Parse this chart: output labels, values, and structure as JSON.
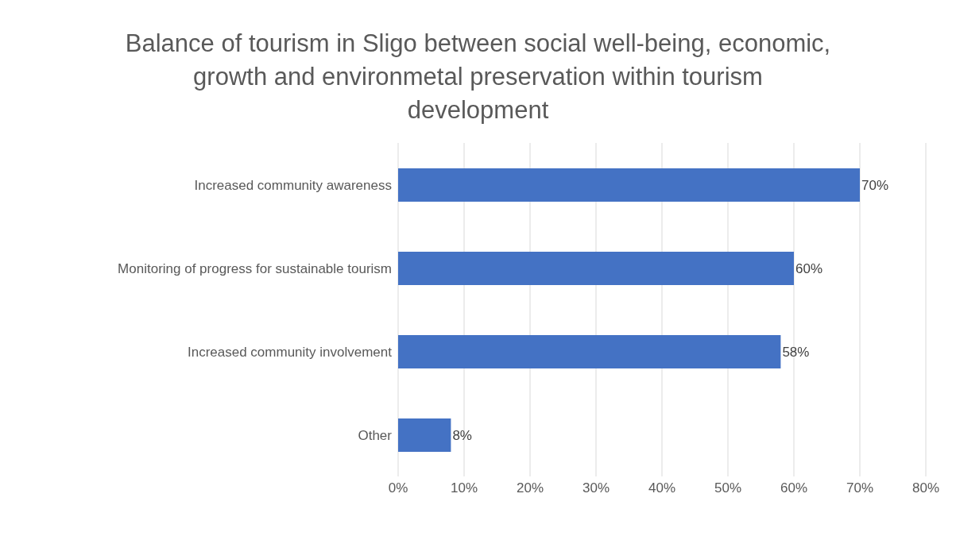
{
  "chart_data": {
    "type": "bar",
    "orientation": "horizontal",
    "title": "Balance of tourism in Sligo between social well-being, economic, growth and environmetal preservation within tourism development",
    "categories": [
      "Increased community awareness",
      "Monitoring of progress for sustainable tourism",
      "Increased community involvement",
      "Other"
    ],
    "values": [
      70,
      60,
      58,
      8
    ],
    "value_labels": [
      "70%",
      "60%",
      "58%",
      "8%"
    ],
    "color": "#4472c4",
    "xlim": [
      0,
      80
    ],
    "xticks": [
      {
        "value": 0,
        "label": "0%"
      },
      {
        "value": 10,
        "label": "10%"
      },
      {
        "value": 20,
        "label": "20%"
      },
      {
        "value": 30,
        "label": "30%"
      },
      {
        "value": 40,
        "label": "40%"
      },
      {
        "value": 50,
        "label": "50%"
      },
      {
        "value": 60,
        "label": "60%"
      },
      {
        "value": 70,
        "label": "70%"
      },
      {
        "value": 80,
        "label": "80%"
      }
    ],
    "grid": "x"
  }
}
